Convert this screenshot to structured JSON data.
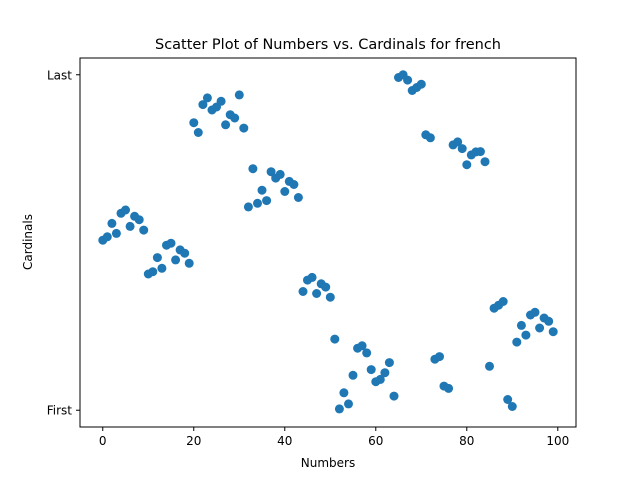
{
  "chart_data": {
    "type": "scatter",
    "title": "Scatter Plot of Numbers vs. Cardinals for french",
    "xlabel": "Numbers",
    "ylabel": "Cardinals",
    "xlim": [
      -5,
      104
    ],
    "ylim": [
      -0.05,
      1.05
    ],
    "xticks": [
      0,
      20,
      40,
      60,
      80,
      100
    ],
    "yticks": [
      {
        "value": 0,
        "label": "First"
      },
      {
        "value": 1,
        "label": "Last"
      }
    ],
    "grid": false,
    "marker_color": "#1f77b4",
    "points": [
      [
        0,
        0.507
      ],
      [
        1,
        0.517
      ],
      [
        2,
        0.557
      ],
      [
        3,
        0.527
      ],
      [
        4,
        0.587
      ],
      [
        5,
        0.597
      ],
      [
        6,
        0.548
      ],
      [
        7,
        0.578
      ],
      [
        8,
        0.568
      ],
      [
        9,
        0.537
      ],
      [
        10,
        0.406
      ],
      [
        11,
        0.413
      ],
      [
        12,
        0.455
      ],
      [
        13,
        0.423
      ],
      [
        14,
        0.492
      ],
      [
        15,
        0.498
      ],
      [
        16,
        0.448
      ],
      [
        17,
        0.478
      ],
      [
        18,
        0.468
      ],
      [
        19,
        0.438
      ],
      [
        20,
        0.857
      ],
      [
        21,
        0.828
      ],
      [
        22,
        0.911
      ],
      [
        23,
        0.931
      ],
      [
        24,
        0.895
      ],
      [
        25,
        0.904
      ],
      [
        26,
        0.921
      ],
      [
        27,
        0.851
      ],
      [
        28,
        0.881
      ],
      [
        29,
        0.871
      ],
      [
        30,
        0.94
      ],
      [
        31,
        0.841
      ],
      [
        32,
        0.606
      ],
      [
        33,
        0.72
      ],
      [
        34,
        0.617
      ],
      [
        35,
        0.656
      ],
      [
        36,
        0.625
      ],
      [
        37,
        0.711
      ],
      [
        38,
        0.692
      ],
      [
        39,
        0.703
      ],
      [
        40,
        0.652
      ],
      [
        41,
        0.682
      ],
      [
        42,
        0.673
      ],
      [
        43,
        0.634
      ],
      [
        44,
        0.354
      ],
      [
        45,
        0.388
      ],
      [
        46,
        0.396
      ],
      [
        47,
        0.348
      ],
      [
        48,
        0.377
      ],
      [
        49,
        0.367
      ],
      [
        50,
        0.337
      ],
      [
        51,
        0.212
      ],
      [
        52,
        0.004
      ],
      [
        53,
        0.052
      ],
      [
        54,
        0.019
      ],
      [
        55,
        0.104
      ],
      [
        56,
        0.185
      ],
      [
        57,
        0.192
      ],
      [
        58,
        0.171
      ],
      [
        59,
        0.121
      ],
      [
        60,
        0.085
      ],
      [
        61,
        0.092
      ],
      [
        62,
        0.112
      ],
      [
        63,
        0.142
      ],
      [
        64,
        0.042
      ],
      [
        65,
        0.992
      ],
      [
        66,
        1.0
      ],
      [
        67,
        0.984
      ],
      [
        68,
        0.953
      ],
      [
        69,
        0.962
      ],
      [
        70,
        0.972
      ],
      [
        71,
        0.821
      ],
      [
        72,
        0.812
      ],
      [
        73,
        0.152
      ],
      [
        74,
        0.16
      ],
      [
        75,
        0.072
      ],
      [
        76,
        0.065
      ],
      [
        77,
        0.791
      ],
      [
        78,
        0.8
      ],
      [
        79,
        0.78
      ],
      [
        80,
        0.732
      ],
      [
        81,
        0.761
      ],
      [
        82,
        0.77
      ],
      [
        83,
        0.771
      ],
      [
        84,
        0.741
      ],
      [
        85,
        0.131
      ],
      [
        86,
        0.304
      ],
      [
        87,
        0.313
      ],
      [
        88,
        0.324
      ],
      [
        89,
        0.032
      ],
      [
        90,
        0.011
      ],
      [
        91,
        0.203
      ],
      [
        92,
        0.253
      ],
      [
        93,
        0.224
      ],
      [
        94,
        0.284
      ],
      [
        95,
        0.292
      ],
      [
        96,
        0.245
      ],
      [
        97,
        0.275
      ],
      [
        98,
        0.265
      ],
      [
        99,
        0.234
      ]
    ]
  }
}
